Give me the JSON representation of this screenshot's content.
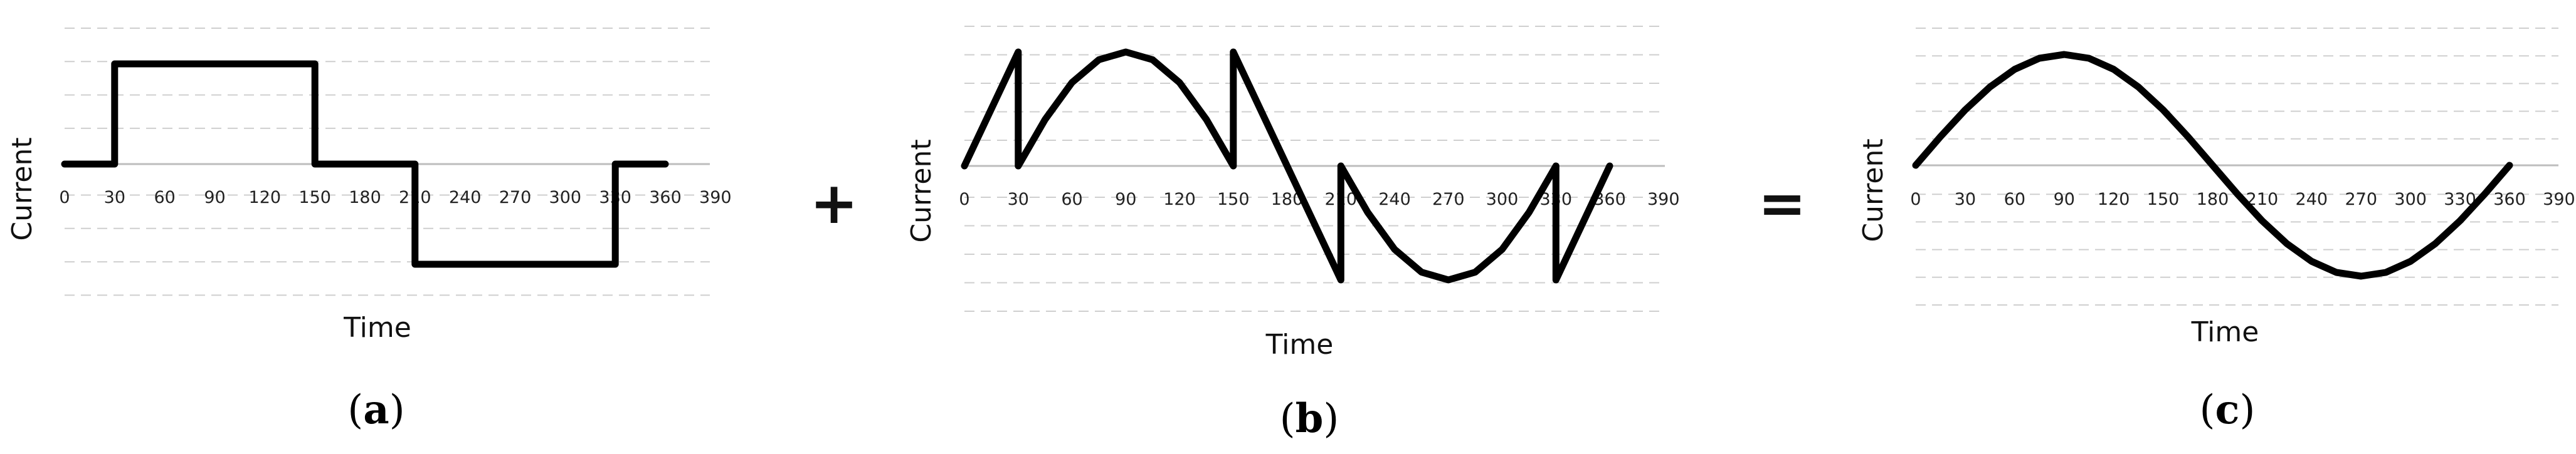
{
  "chart_data": [
    {
      "type": "line",
      "panel_label": "a",
      "xlabel": "Time",
      "ylabel": "Current",
      "xlim": [
        0,
        360
      ],
      "ylim": [
        -1,
        1
      ],
      "x_ticks": [
        "0",
        "30",
        "60",
        "90",
        "120",
        "150",
        "180",
        "210",
        "240",
        "270",
        "300",
        "330",
        "360",
        "390"
      ],
      "grid": true,
      "series": [
        {
          "x": [
            0,
            30,
            30,
            150,
            150,
            210,
            210,
            330,
            330,
            360
          ],
          "y": [
            0,
            0,
            1,
            1,
            0,
            0,
            -1,
            -1,
            0,
            0
          ]
        }
      ]
    },
    {
      "type": "line",
      "panel_label": "b",
      "xlabel": "Time",
      "ylabel": "Current",
      "xlim": [
        0,
        360
      ],
      "ylim": [
        -1,
        1
      ],
      "x_ticks": [
        "0",
        "30",
        "60",
        "90",
        "120",
        "150",
        "180",
        "210",
        "240",
        "270",
        "300",
        "330",
        "360",
        "390"
      ],
      "grid": true,
      "series": [
        {
          "x": [
            0,
            30,
            30,
            45,
            60,
            75,
            90,
            105,
            120,
            135,
            150,
            150,
            210,
            210,
            225,
            240,
            255,
            270,
            285,
            300,
            315,
            330,
            330,
            360
          ],
          "y": [
            0,
            1,
            0,
            0.407,
            0.732,
            0.932,
            1,
            0.932,
            0.732,
            0.407,
            0,
            1,
            -1,
            0,
            -0.407,
            -0.732,
            -0.932,
            -1,
            -0.932,
            -0.732,
            -0.407,
            0,
            -1,
            0
          ]
        }
      ]
    },
    {
      "type": "line",
      "panel_label": "c",
      "xlabel": "Time",
      "ylabel": "Current",
      "xlim": [
        0,
        360
      ],
      "ylim": [
        -1,
        1
      ],
      "x_ticks": [
        "0",
        "30",
        "60",
        "90",
        "120",
        "150",
        "180",
        "210",
        "240",
        "270",
        "300",
        "330",
        "360",
        "390"
      ],
      "grid": true,
      "series": [
        {
          "x": [
            0,
            15,
            30,
            45,
            60,
            75,
            90,
            105,
            120,
            135,
            150,
            165,
            180,
            195,
            210,
            225,
            240,
            255,
            270,
            285,
            300,
            315,
            330,
            345,
            360
          ],
          "y": [
            0,
            0.259,
            0.5,
            0.707,
            0.866,
            0.966,
            1,
            0.966,
            0.866,
            0.707,
            0.5,
            0.259,
            0,
            -0.259,
            -0.5,
            -0.707,
            -0.866,
            -0.966,
            -1,
            -0.966,
            -0.866,
            -0.707,
            -0.5,
            -0.259,
            0
          ]
        }
      ]
    }
  ],
  "operators": [
    "+",
    "="
  ],
  "colors": {
    "line": "#000000",
    "grid": "#cfcfcf",
    "axis": "#bdbdbd"
  }
}
